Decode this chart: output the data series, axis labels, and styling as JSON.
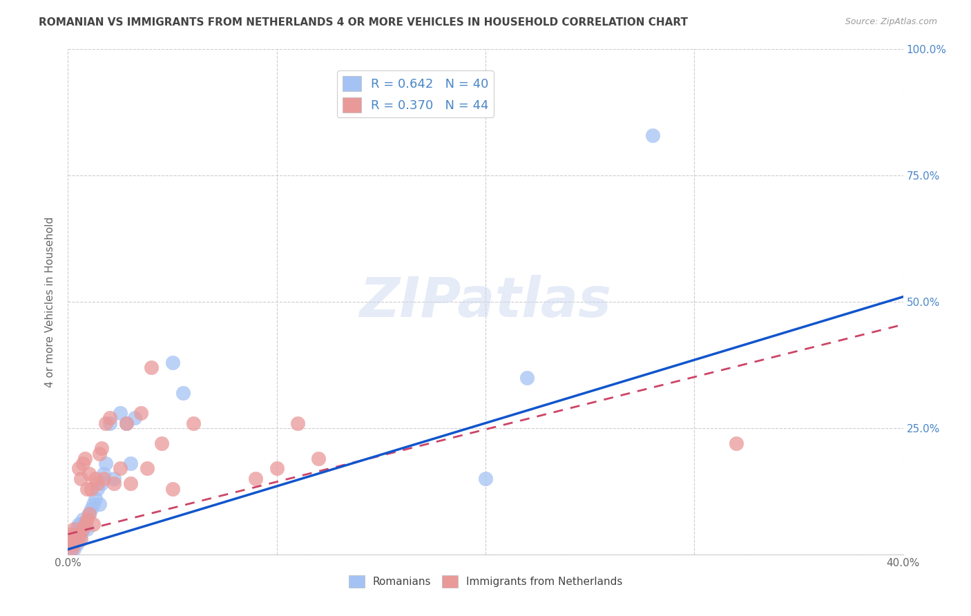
{
  "title": "ROMANIAN VS IMMIGRANTS FROM NETHERLANDS 4 OR MORE VEHICLES IN HOUSEHOLD CORRELATION CHART",
  "source": "Source: ZipAtlas.com",
  "xlabel": "",
  "ylabel": "4 or more Vehicles in Household",
  "xlim": [
    0.0,
    0.4
  ],
  "ylim": [
    0.0,
    1.0
  ],
  "xticks": [
    0.0,
    0.1,
    0.2,
    0.3,
    0.4
  ],
  "xticklabels": [
    "0.0%",
    "",
    "",
    "",
    "40.0%"
  ],
  "yticks_right": [
    0.0,
    0.25,
    0.5,
    0.75,
    1.0
  ],
  "yticklabels_right": [
    "",
    "25.0%",
    "50.0%",
    "75.0%",
    "100.0%"
  ],
  "R_blue": 0.642,
  "N_blue": 40,
  "R_pink": 0.37,
  "N_pink": 44,
  "blue_color": "#a4c2f4",
  "pink_color": "#ea9999",
  "blue_line_color": "#1155cc",
  "pink_line_color": "#cc4466",
  "background_color": "#ffffff",
  "grid_color": "#cccccc",
  "title_color": "#444444",
  "label_color": "#4a86c8",
  "legend_text_color": "#4a86c8",
  "watermark": "ZIPatlas",
  "blue_line_x0": 0.0,
  "blue_line_y0": 0.01,
  "blue_line_x1": 0.4,
  "blue_line_y1": 0.51,
  "pink_line_x0": 0.0,
  "pink_line_y0": 0.04,
  "pink_line_x1": 0.4,
  "pink_line_y1": 0.455,
  "blue_x": [
    0.001,
    0.001,
    0.002,
    0.002,
    0.002,
    0.003,
    0.003,
    0.003,
    0.004,
    0.004,
    0.004,
    0.005,
    0.005,
    0.005,
    0.006,
    0.006,
    0.007,
    0.007,
    0.008,
    0.009,
    0.01,
    0.011,
    0.012,
    0.013,
    0.014,
    0.015,
    0.016,
    0.017,
    0.018,
    0.02,
    0.022,
    0.025,
    0.028,
    0.03,
    0.032,
    0.05,
    0.055,
    0.2,
    0.22,
    0.28
  ],
  "blue_y": [
    0.01,
    0.02,
    0.01,
    0.02,
    0.03,
    0.01,
    0.02,
    0.04,
    0.02,
    0.03,
    0.05,
    0.03,
    0.04,
    0.06,
    0.04,
    0.06,
    0.05,
    0.07,
    0.06,
    0.05,
    0.08,
    0.09,
    0.1,
    0.11,
    0.13,
    0.1,
    0.14,
    0.16,
    0.18,
    0.26,
    0.15,
    0.28,
    0.26,
    0.18,
    0.27,
    0.38,
    0.32,
    0.15,
    0.35,
    0.83
  ],
  "pink_x": [
    0.001,
    0.001,
    0.002,
    0.002,
    0.003,
    0.003,
    0.004,
    0.004,
    0.005,
    0.005,
    0.006,
    0.006,
    0.007,
    0.007,
    0.008,
    0.008,
    0.009,
    0.009,
    0.01,
    0.01,
    0.011,
    0.012,
    0.013,
    0.014,
    0.015,
    0.016,
    0.017,
    0.018,
    0.02,
    0.022,
    0.025,
    0.028,
    0.03,
    0.035,
    0.038,
    0.04,
    0.045,
    0.05,
    0.06,
    0.09,
    0.1,
    0.11,
    0.12,
    0.32
  ],
  "pink_y": [
    0.02,
    0.04,
    0.01,
    0.03,
    0.02,
    0.05,
    0.03,
    0.04,
    0.04,
    0.17,
    0.03,
    0.15,
    0.05,
    0.18,
    0.06,
    0.19,
    0.07,
    0.13,
    0.08,
    0.16,
    0.13,
    0.06,
    0.15,
    0.14,
    0.2,
    0.21,
    0.15,
    0.26,
    0.27,
    0.14,
    0.17,
    0.26,
    0.14,
    0.28,
    0.17,
    0.37,
    0.22,
    0.13,
    0.26,
    0.15,
    0.17,
    0.26,
    0.19,
    0.22
  ]
}
